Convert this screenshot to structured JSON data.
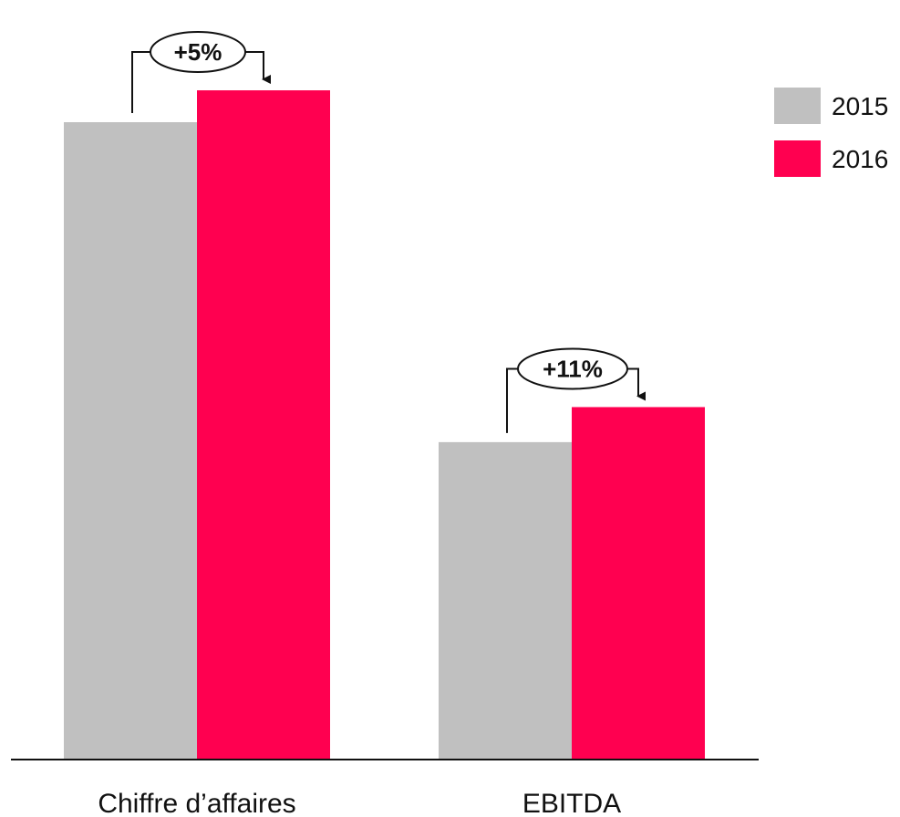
{
  "chart_data": {
    "type": "bar",
    "categories": [
      "Chiffre d’affaires",
      "EBITDA"
    ],
    "series": [
      {
        "name": "2015",
        "values": [
          100,
          49.8
        ],
        "color": "#c0c0c0"
      },
      {
        "name": "2016",
        "values": [
          105,
          55.3
        ],
        "color": "#ff0050"
      }
    ],
    "annotations": [
      "+5%",
      "+11%"
    ],
    "ylim": [
      0,
      120
    ],
    "legend": {
      "placement": "top-right"
    },
    "grid": false,
    "axis_color": "#111111"
  }
}
